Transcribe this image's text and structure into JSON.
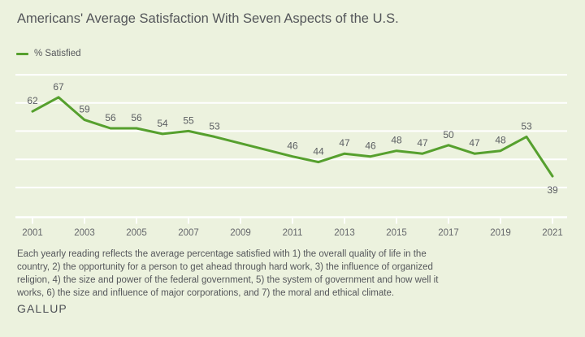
{
  "title": "Americans' Average Satisfaction With Seven Aspects of the U.S.",
  "legend": {
    "label": "% Satisfied"
  },
  "footnote_lines": [
    "Each yearly reading reflects the average percentage satisfied with 1) the overall quality of life in the",
    "country, 2) the opportunity for a person to get ahead through hard work, 3) the influence of organized",
    "religion, 4) the size and power of the federal government, 5) the system of government and how well it",
    "works, 6) the size and influence of major corporations, and 7) the moral and ethical climate."
  ],
  "brand": "GALLUP",
  "colors": {
    "background": "#ECF2DE",
    "line_green": "#56A02E",
    "gridline": "#FFFFFF",
    "label_gray": "#5B5E62"
  },
  "chart_data": {
    "type": "line",
    "title": "Americans' Average Satisfaction With Seven Aspects of the U.S.",
    "series_name": "% Satisfied",
    "line_color": "#56A02E",
    "points": [
      {
        "year": 2001,
        "value": 62
      },
      {
        "year": 2002,
        "value": 67
      },
      {
        "year": 2003,
        "value": 59
      },
      {
        "year": 2004,
        "value": 56
      },
      {
        "year": 2005,
        "value": 56
      },
      {
        "year": 2006,
        "value": 54
      },
      {
        "year": 2007,
        "value": 55
      },
      {
        "year": 2008,
        "value": 53
      },
      {
        "year": 2011,
        "value": 46
      },
      {
        "year": 2012,
        "value": 44
      },
      {
        "year": 2013,
        "value": 47
      },
      {
        "year": 2014,
        "value": 46
      },
      {
        "year": 2015,
        "value": 48
      },
      {
        "year": 2016,
        "value": 47
      },
      {
        "year": 2017,
        "value": 50
      },
      {
        "year": 2018,
        "value": 47
      },
      {
        "year": 2019,
        "value": 48
      },
      {
        "year": 2020,
        "value": 53
      },
      {
        "year": 2021,
        "value": 39
      }
    ],
    "missing_years": [
      2009,
      2010
    ],
    "x_tick_labels": [
      "2001",
      "2003",
      "2005",
      "2007",
      "2009",
      "2011",
      "2013",
      "2015",
      "2017",
      "2019",
      "2021"
    ],
    "x_range": [
      2001,
      2021
    ],
    "y_gridline_values": [
      75,
      65,
      55,
      45,
      35
    ],
    "y_axis_tick_labels_visible": false,
    "grid": "horizontal-white",
    "legend_position": "top-left",
    "label_below_years": [
      2021
    ]
  }
}
